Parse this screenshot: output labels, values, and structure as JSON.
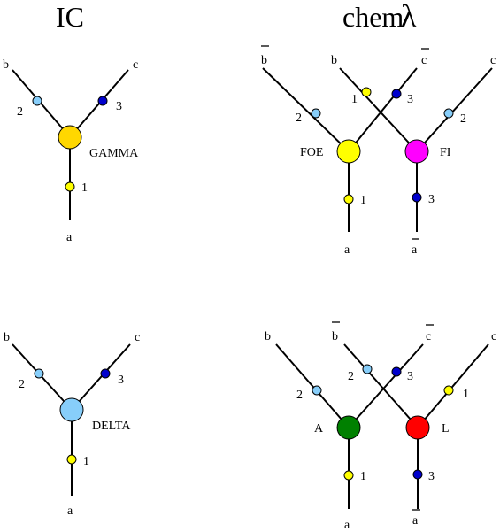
{
  "colors": {
    "light_blue": "#87cefa",
    "dark_blue": "#0000cd",
    "yellow": "#ffff00",
    "gold": "#ffd700",
    "magenta": "#ff00ff",
    "green": "#008000",
    "red": "#ff0000",
    "light_blue_big": "#87cefa"
  },
  "titles": {
    "ic": "IC",
    "chem": "chem",
    "lambda": "λ"
  },
  "gamma": {
    "b": "b",
    "c": "c",
    "a": "a",
    "p2": "2",
    "p3": "3",
    "p1": "1",
    "name": "GAMMA"
  },
  "delta": {
    "b": "b",
    "c": "c",
    "a": "a",
    "p2": "2",
    "p3": "3",
    "p1": "1",
    "name": "DELTA"
  },
  "foefi": {
    "bbar": "b",
    "b": "b",
    "cbar": "c",
    "c": "c",
    "a": "a",
    "abar": "a",
    "p1_top": "1",
    "p3_top": "3",
    "p2_left": "2",
    "p2_right": "2",
    "p1_low": "1",
    "p3_low": "3",
    "left_name": "FOE",
    "right_name": "FI"
  },
  "al": {
    "b": "b",
    "bbar": "b",
    "cbar": "c",
    "c": "c",
    "a": "a",
    "abar": "a",
    "p2_top": "2",
    "p3_top": "3",
    "p2_left": "2",
    "p1_right": "1",
    "p1_low": "1",
    "p3_low": "3",
    "left_name": "A",
    "right_name": "L"
  }
}
